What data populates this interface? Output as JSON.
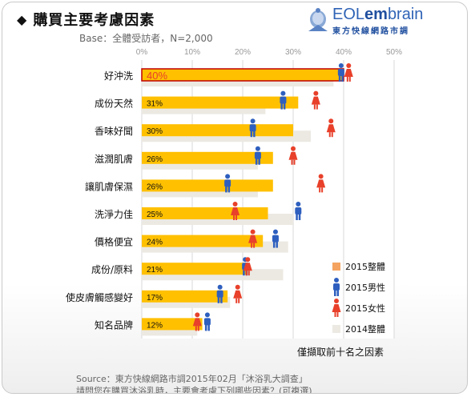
{
  "header": {
    "title": "購買主要考慮因素",
    "base": "Base：全體受訪者，N=2,000"
  },
  "logo": {
    "name_part1": "EOL",
    "name_part2": "em",
    "name_part3": "brain",
    "subtitle": "東方快線網路市調"
  },
  "colors": {
    "bar_2015": "#FFC000",
    "bar_2014": "#ECE9E2",
    "male": "#2E5FBF",
    "female": "#E8402A",
    "highlight_border": "#C00000",
    "highlight_text": "#E8402A"
  },
  "chart_data": {
    "type": "bar",
    "orientation": "horizontal",
    "categories": [
      "好沖洗",
      "成份天然",
      "香味好聞",
      "滋潤肌膚",
      "讓肌膚保濕",
      "洗淨力佳",
      "價格便宜",
      "成份/原料",
      "使皮膚觸感變好",
      "知名品牌"
    ],
    "x_ticks": [
      "0%",
      "10%",
      "20%",
      "30%",
      "40%",
      "50%"
    ],
    "xlim": [
      0,
      50
    ],
    "grid": true,
    "highlight_index": 0,
    "series": [
      {
        "name": "2015整體",
        "kind": "bar",
        "values": [
          40,
          31,
          30,
          26,
          26,
          25,
          24,
          21,
          17,
          12
        ],
        "labels": [
          "40%",
          "31%",
          "30%",
          "26%",
          "26%",
          "25%",
          "24%",
          "21%",
          "17%",
          "12%"
        ]
      },
      {
        "name": "2015男性",
        "kind": "male-icon",
        "values": [
          39.5,
          28,
          22,
          23,
          17,
          31,
          26.5,
          20.5,
          15.5,
          13
        ]
      },
      {
        "name": "2015女性",
        "kind": "female-icon",
        "values": [
          41,
          34.5,
          37.5,
          30,
          35.5,
          18.5,
          22,
          21,
          19,
          11
        ]
      },
      {
        "name": "2014整體",
        "kind": "bar",
        "values": [
          38,
          24.5,
          33.5,
          23,
          23,
          30,
          29,
          28,
          17.5,
          11
        ]
      }
    ],
    "legend_position": "bottom-right"
  },
  "footer": {
    "note": "僅擷取前十名之因素",
    "source_line1": "Source：東方快線網路市調2015年02月「沐浴乳大調查」",
    "source_line2": "請問您在購買沐浴乳時，主要會考慮下列哪些因素？(可複選)"
  }
}
